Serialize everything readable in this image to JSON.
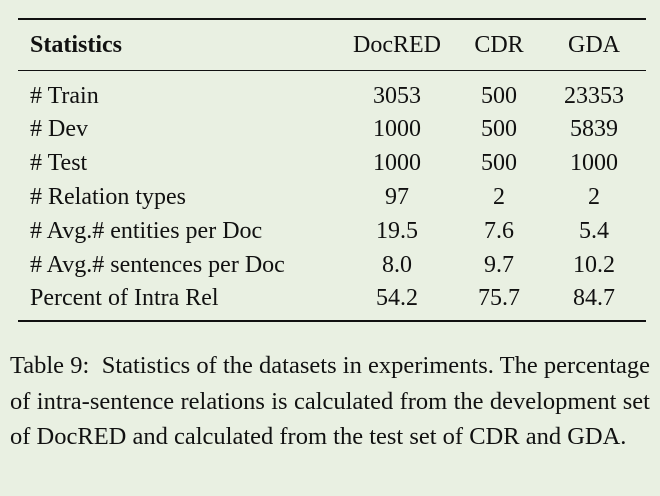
{
  "table": {
    "headers": [
      "Statistics",
      "DocRED",
      "CDR",
      "GDA"
    ],
    "rows": [
      {
        "label": "# Train",
        "values": [
          "3053",
          "500",
          "23353"
        ]
      },
      {
        "label": "# Dev",
        "values": [
          "1000",
          "500",
          "5839"
        ]
      },
      {
        "label": "# Test",
        "values": [
          "1000",
          "500",
          "1000"
        ]
      },
      {
        "label": "# Relation types",
        "values": [
          "97",
          "2",
          "2"
        ]
      },
      {
        "label": "# Avg.# entities per Doc",
        "values": [
          "19.5",
          "7.6",
          "5.4"
        ]
      },
      {
        "label": "# Avg.# sentences per Doc",
        "values": [
          "8.0",
          "9.7",
          "10.2"
        ]
      },
      {
        "label": "Percent of Intra Rel",
        "values": [
          "54.2",
          "75.7",
          "84.7"
        ]
      }
    ]
  },
  "caption": {
    "label": "Table 9:",
    "text": "Statistics of the datasets in experiments. The percentage of intra-sentence relations is calculated from the development set of DocRED and calculated from the test set of CDR and GDA."
  }
}
